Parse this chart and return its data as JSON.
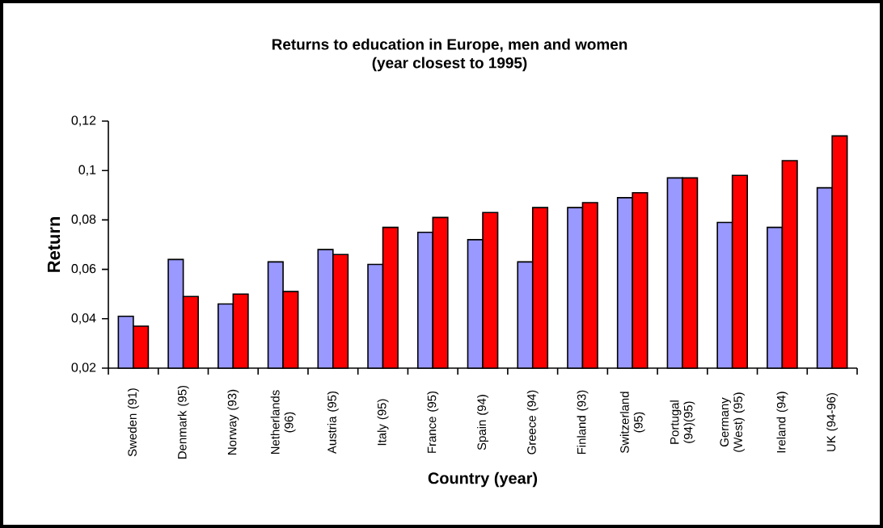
{
  "chart_data": {
    "type": "bar",
    "title": "Returns to education in Europe, men and women",
    "subtitle": "(year closest to 1995)",
    "xlabel": "Country (year)",
    "ylabel": "Return",
    "categories": [
      "Sweden (91)",
      "Denmark (95)",
      "Norway (93)",
      "Netherlands (96)",
      "Austria (95)",
      "Italy (95)",
      "France (95)",
      "Spain (94)",
      "Greece (94)",
      "Finland (93)",
      "Switzerland (95)",
      "Portugal (94)(95)",
      "Germany (West) (95)",
      "Ireland (94)",
      "UK (94-96)"
    ],
    "series": [
      {
        "color": "#9999ff",
        "values": [
          0.041,
          0.064,
          0.046,
          0.063,
          0.068,
          0.062,
          0.075,
          0.072,
          0.063,
          0.085,
          0.089,
          0.097,
          0.079,
          0.077,
          0.093
        ]
      },
      {
        "color": "#ff0000",
        "values": [
          0.037,
          0.049,
          0.05,
          0.051,
          0.066,
          0.077,
          0.081,
          0.083,
          0.085,
          0.087,
          0.091,
          0.097,
          0.098,
          0.104,
          0.114
        ]
      }
    ],
    "ylim": [
      0.02,
      0.12
    ],
    "yticks": [
      {
        "value": 0.02,
        "label": "0,02"
      },
      {
        "value": 0.04,
        "label": "0,04"
      },
      {
        "value": 0.06,
        "label": "0,06"
      },
      {
        "value": 0.08,
        "label": "0,08"
      },
      {
        "value": 0.1,
        "label": "0,1"
      },
      {
        "value": 0.12,
        "label": "0,12"
      }
    ],
    "grid": false
  }
}
